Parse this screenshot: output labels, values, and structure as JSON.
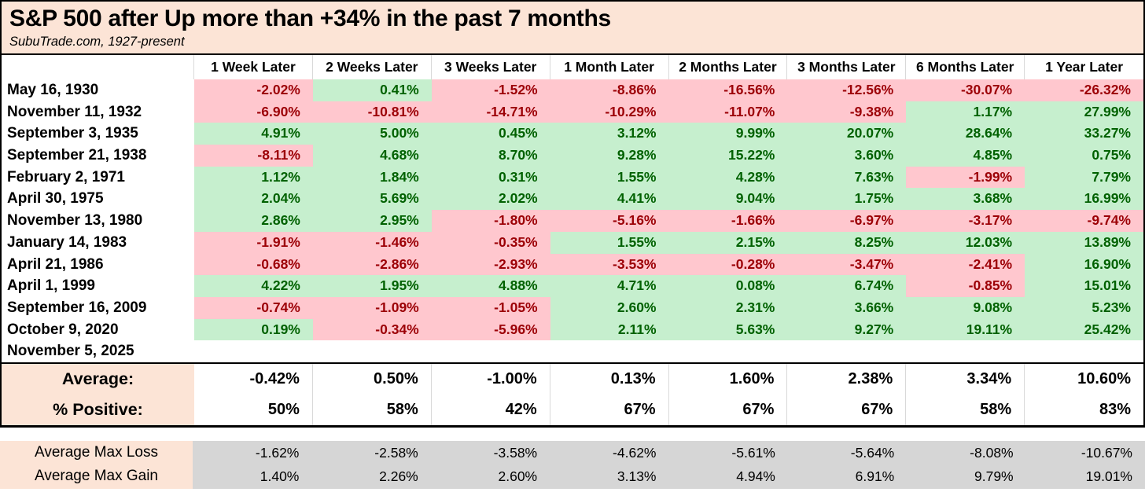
{
  "title": "S&P 500 after Up more than +34% in the past 7 months",
  "subtitle": "SubuTrade.com, 1927-present",
  "colors": {
    "header_bg": "#FCE4D6",
    "positive_bg": "#C6EFCE",
    "positive_text": "#006100",
    "negative_bg": "#FFC7CE",
    "negative_text": "#9C0006",
    "footer_bg": "#D6D6D6",
    "grid_line": "#D9D9D9",
    "border": "#000000"
  },
  "chart_data": {
    "type": "table",
    "title": "S&P 500 after Up more than +34% in the past 7 months",
    "source": "SubuTrade.com, 1927-present",
    "value_format": "percent_2dp",
    "color_rule": "negative values pink background with dark red text, positive values green background with dark green text",
    "columns": [
      "1 Week Later",
      "2 Weeks Later",
      "3 Weeks Later",
      "1 Month Later",
      "2 Months Later",
      "3 Months Later",
      "6 Months Later",
      "1 Year Later"
    ],
    "rows": [
      {
        "date": "May 16, 1930",
        "values": [
          -2.02,
          0.41,
          -1.52,
          -8.86,
          -16.56,
          -12.56,
          -30.07,
          -26.32
        ]
      },
      {
        "date": "November 11, 1932",
        "values": [
          -6.9,
          -10.81,
          -14.71,
          -10.29,
          -11.07,
          -9.38,
          1.17,
          27.99
        ]
      },
      {
        "date": "September 3, 1935",
        "values": [
          4.91,
          5.0,
          0.45,
          3.12,
          9.99,
          20.07,
          28.64,
          33.27
        ]
      },
      {
        "date": "September 21, 1938",
        "values": [
          -8.11,
          4.68,
          8.7,
          9.28,
          15.22,
          3.6,
          4.85,
          0.75
        ]
      },
      {
        "date": "February 2, 1971",
        "values": [
          1.12,
          1.84,
          0.31,
          1.55,
          4.28,
          7.63,
          -1.99,
          7.79
        ]
      },
      {
        "date": "April 30, 1975",
        "values": [
          2.04,
          5.69,
          2.02,
          4.41,
          9.04,
          1.75,
          3.68,
          16.99
        ]
      },
      {
        "date": "November 13, 1980",
        "values": [
          2.86,
          2.95,
          -1.8,
          -5.16,
          -1.66,
          -6.97,
          -3.17,
          -9.74
        ]
      },
      {
        "date": "January 14, 1983",
        "values": [
          -1.91,
          -1.46,
          -0.35,
          1.55,
          2.15,
          8.25,
          12.03,
          13.89
        ]
      },
      {
        "date": "April 21, 1986",
        "values": [
          -0.68,
          -2.86,
          -2.93,
          -3.53,
          -0.28,
          -3.47,
          -2.41,
          16.9
        ]
      },
      {
        "date": "April 1, 1999",
        "values": [
          4.22,
          1.95,
          4.88,
          4.71,
          0.08,
          6.74,
          -0.85,
          15.01
        ]
      },
      {
        "date": "September 16, 2009",
        "values": [
          -0.74,
          -1.09,
          -1.05,
          2.6,
          2.31,
          3.66,
          9.08,
          5.23
        ]
      },
      {
        "date": "October 9, 2020",
        "values": [
          0.19,
          -0.34,
          -5.96,
          2.11,
          5.63,
          9.27,
          19.11,
          25.42
        ]
      },
      {
        "date": "November 5, 2025",
        "values": []
      }
    ],
    "summary": {
      "average_label": "Average:",
      "average": [
        "-0.42%",
        "0.50%",
        "-1.00%",
        "0.13%",
        "1.60%",
        "2.38%",
        "3.34%",
        "10.60%"
      ],
      "pct_positive_label": "% Positive:",
      "pct_positive": [
        "50%",
        "58%",
        "42%",
        "67%",
        "67%",
        "67%",
        "58%",
        "83%"
      ]
    },
    "footer": {
      "max_loss_label": "Average Max Loss",
      "max_loss": [
        "-1.62%",
        "-2.58%",
        "-3.58%",
        "-4.62%",
        "-5.61%",
        "-5.64%",
        "-8.08%",
        "-10.67%"
      ],
      "max_gain_label": "Average Max Gain",
      "max_gain": [
        "1.40%",
        "2.26%",
        "2.60%",
        "3.13%",
        "4.94%",
        "6.91%",
        "9.79%",
        "19.01%"
      ]
    }
  }
}
